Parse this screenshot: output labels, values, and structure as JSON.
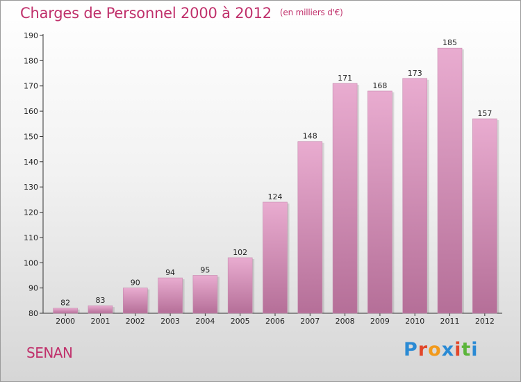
{
  "header": {
    "title": "Charges de Personnel 2000 à 2012",
    "subtitle": "(en milliers d'€)"
  },
  "footer": {
    "commune": "SENAN",
    "logo": {
      "text": "Proxiti",
      "letter_colors": [
        "#2a8ad4",
        "#e2472a",
        "#f29a1c",
        "#2a8ad4",
        "#e2472a",
        "#5bb53b",
        "#2a8ad4"
      ]
    }
  },
  "colors": {
    "bar_top": "#e9acd0",
    "bar_bottom": "#b56f98",
    "accent": "#c0306b"
  },
  "chart_data": {
    "type": "bar",
    "title": "Charges de Personnel 2000 à 2012",
    "subtitle": "(en milliers d'€)",
    "xlabel": "",
    "ylabel": "",
    "categories": [
      "2000",
      "2001",
      "2002",
      "2003",
      "2004",
      "2005",
      "2006",
      "2007",
      "2008",
      "2009",
      "2010",
      "2011",
      "2012"
    ],
    "values": [
      82,
      83,
      90,
      94,
      95,
      102,
      124,
      148,
      171,
      168,
      173,
      185,
      157
    ],
    "ylim": [
      80,
      190
    ],
    "yticks": [
      80,
      90,
      100,
      110,
      120,
      130,
      140,
      150,
      160,
      170,
      180,
      190
    ],
    "grid": false,
    "legend": "none"
  }
}
